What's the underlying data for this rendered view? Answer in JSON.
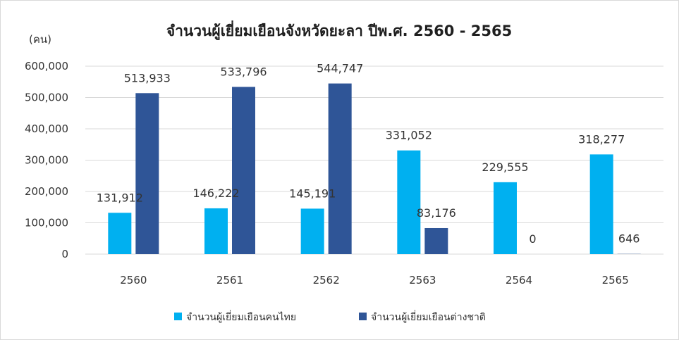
{
  "chart_data": {
    "type": "bar",
    "title": "จำนวนผู้เยี่ยมเยือนจังหวัดยะลา ปีพ.ศ. 2560 - 2565",
    "ylabel": "(คน)",
    "xlabel": "",
    "categories": [
      "2560",
      "2561",
      "2562",
      "2563",
      "2564",
      "2565"
    ],
    "series": [
      {
        "name": "จำนวนผู้เยี่ยมเยือนคนไทย",
        "color": "#00b0f0",
        "values": [
          131912,
          146222,
          145191,
          331052,
          229555,
          318277
        ]
      },
      {
        "name": "จำนวนผู้เยี่ยมเยือนต่างชาติ",
        "color": "#2f5597",
        "values": [
          513933,
          533796,
          544747,
          83176,
          0,
          646
        ]
      }
    ],
    "data_labels": [
      [
        "131,912",
        "146,222",
        "145,191",
        "331,052",
        "229,555",
        "318,277"
      ],
      [
        "513,933",
        "533,796",
        "544,747",
        "83,176",
        "0",
        "646"
      ]
    ],
    "ylim": [
      0,
      600000
    ],
    "yticks": [
      0,
      100000,
      200000,
      300000,
      400000,
      500000,
      600000
    ],
    "ytick_labels": [
      "0",
      "100,000",
      "200,000",
      "300,000",
      "400,000",
      "500,000",
      "600,000"
    ],
    "grid": true,
    "legend_position": "bottom"
  }
}
